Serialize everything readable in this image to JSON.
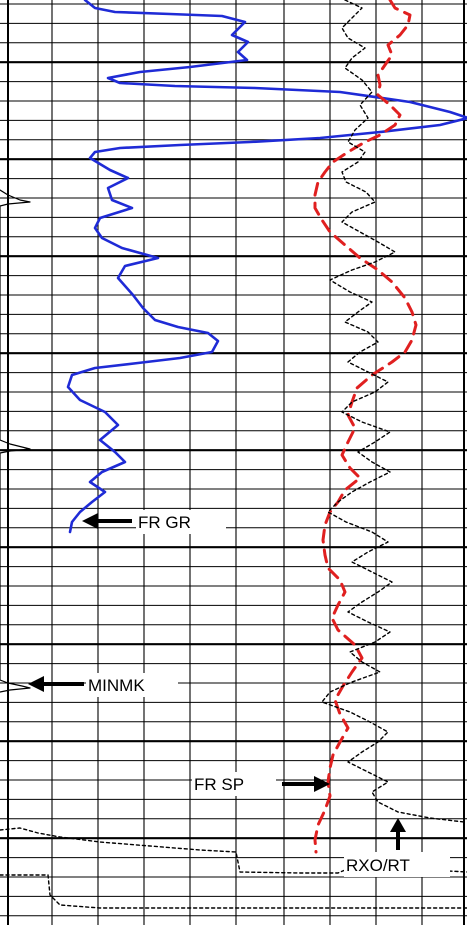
{
  "chart_data": {
    "type": "line",
    "title": "",
    "xlabel": "",
    "ylabel": "",
    "grid": true,
    "annotations": [
      {
        "name": "fr-gr-label",
        "text": "FR GR"
      },
      {
        "name": "minmk-label",
        "text": "MINMK"
      },
      {
        "name": "fr-sp-label",
        "text": "FR SP"
      },
      {
        "name": "rxo-rt-label",
        "text": "RXO/RT"
      }
    ],
    "series": [
      {
        "name": "FR GR",
        "color": "#1f2bd6",
        "style": "solid",
        "points": [
          [
            85,
            0
          ],
          [
            95,
            8
          ],
          [
            115,
            12
          ],
          [
            170,
            14
          ],
          [
            222,
            16
          ],
          [
            245,
            22
          ],
          [
            232,
            35
          ],
          [
            248,
            42
          ],
          [
            238,
            52
          ],
          [
            247,
            60
          ],
          [
            190,
            67
          ],
          [
            140,
            72
          ],
          [
            108,
            78
          ],
          [
            120,
            83
          ],
          [
            175,
            86
          ],
          [
            255,
            88
          ],
          [
            340,
            92
          ],
          [
            410,
            102
          ],
          [
            450,
            112
          ],
          [
            468,
            118
          ],
          [
            440,
            125
          ],
          [
            380,
            132
          ],
          [
            320,
            138
          ],
          [
            250,
            142
          ],
          [
            180,
            145
          ],
          [
            120,
            148
          ],
          [
            95,
            152
          ],
          [
            90,
            158
          ],
          [
            110,
            170
          ],
          [
            128,
            178
          ],
          [
            108,
            188
          ],
          [
            112,
            200
          ],
          [
            132,
            208
          ],
          [
            100,
            218
          ],
          [
            95,
            228
          ],
          [
            102,
            238
          ],
          [
            122,
            248
          ],
          [
            158,
            258
          ],
          [
            125,
            266
          ],
          [
            118,
            278
          ],
          [
            133,
            295
          ],
          [
            143,
            308
          ],
          [
            155,
            320
          ],
          [
            178,
            327
          ],
          [
            208,
            333
          ],
          [
            218,
            341
          ],
          [
            212,
            352
          ],
          [
            180,
            358
          ],
          [
            138,
            363
          ],
          [
            95,
            368
          ],
          [
            72,
            375
          ],
          [
            68,
            387
          ],
          [
            80,
            400
          ],
          [
            105,
            412
          ],
          [
            118,
            425
          ],
          [
            100,
            440
          ],
          [
            115,
            452
          ],
          [
            125,
            462
          ],
          [
            102,
            472
          ],
          [
            90,
            482
          ],
          [
            105,
            492
          ],
          [
            92,
            502
          ],
          [
            80,
            512
          ],
          [
            72,
            522
          ],
          [
            70,
            532
          ]
        ]
      },
      {
        "name": "FR SP",
        "color": "#e02020",
        "style": "dashed",
        "points": [
          [
            390,
            0
          ],
          [
            395,
            8
          ],
          [
            410,
            15
          ],
          [
            408,
            25
          ],
          [
            400,
            35
          ],
          [
            388,
            45
          ],
          [
            392,
            55
          ],
          [
            385,
            65
          ],
          [
            378,
            75
          ],
          [
            380,
            85
          ],
          [
            378,
            95
          ],
          [
            390,
            105
          ],
          [
            400,
            115
          ],
          [
            395,
            125
          ],
          [
            380,
            135
          ],
          [
            365,
            142
          ],
          [
            348,
            152
          ],
          [
            333,
            162
          ],
          [
            325,
            172
          ],
          [
            318,
            182
          ],
          [
            315,
            195
          ],
          [
            315,
            208
          ],
          [
            322,
            220
          ],
          [
            330,
            232
          ],
          [
            345,
            245
          ],
          [
            360,
            258
          ],
          [
            378,
            270
          ],
          [
            392,
            282
          ],
          [
            405,
            298
          ],
          [
            412,
            312
          ],
          [
            416,
            325
          ],
          [
            412,
            340
          ],
          [
            405,
            352
          ],
          [
            392,
            362
          ],
          [
            372,
            375
          ],
          [
            357,
            388
          ],
          [
            352,
            402
          ],
          [
            348,
            415
          ],
          [
            355,
            428
          ],
          [
            348,
            442
          ],
          [
            342,
            455
          ],
          [
            350,
            468
          ],
          [
            360,
            478
          ],
          [
            345,
            490
          ],
          [
            338,
            502
          ],
          [
            330,
            512
          ],
          [
            325,
            525
          ],
          [
            323,
            540
          ],
          [
            325,
            555
          ],
          [
            328,
            568
          ],
          [
            340,
            580
          ],
          [
            345,
            592
          ],
          [
            338,
            605
          ],
          [
            332,
            618
          ],
          [
            338,
            630
          ],
          [
            355,
            645
          ],
          [
            362,
            658
          ],
          [
            352,
            672
          ],
          [
            343,
            686
          ],
          [
            335,
            700
          ],
          [
            340,
            714
          ],
          [
            348,
            728
          ],
          [
            340,
            742
          ],
          [
            333,
            755
          ],
          [
            330,
            768
          ],
          [
            328,
            782
          ],
          [
            330,
            796
          ],
          [
            325,
            810
          ],
          [
            318,
            825
          ],
          [
            315,
            840
          ],
          [
            316,
            852
          ]
        ]
      },
      {
        "name": "RXO/RT",
        "color": "#000000",
        "style": "dotted",
        "points": [
          [
            345,
            0
          ],
          [
            362,
            8
          ],
          [
            352,
            18
          ],
          [
            342,
            28
          ],
          [
            348,
            38
          ],
          [
            365,
            48
          ],
          [
            352,
            58
          ],
          [
            345,
            68
          ],
          [
            362,
            80
          ],
          [
            372,
            92
          ],
          [
            360,
            105
          ],
          [
            368,
            118
          ],
          [
            355,
            130
          ],
          [
            348,
            142
          ],
          [
            365,
            152
          ],
          [
            358,
            162
          ],
          [
            342,
            172
          ],
          [
            346,
            182
          ],
          [
            366,
            192
          ],
          [
            375,
            202
          ],
          [
            352,
            212
          ],
          [
            342,
            222
          ],
          [
            360,
            232
          ],
          [
            378,
            242
          ],
          [
            395,
            252
          ],
          [
            375,
            262
          ],
          [
            352,
            270
          ],
          [
            330,
            280
          ],
          [
            350,
            292
          ],
          [
            372,
            302
          ],
          [
            358,
            312
          ],
          [
            345,
            322
          ],
          [
            368,
            332
          ],
          [
            378,
            342
          ],
          [
            360,
            352
          ],
          [
            348,
            362
          ],
          [
            368,
            372
          ],
          [
            388,
            382
          ],
          [
            375,
            392
          ],
          [
            352,
            402
          ],
          [
            342,
            412
          ],
          [
            362,
            422
          ],
          [
            390,
            432
          ],
          [
            375,
            442
          ],
          [
            358,
            452
          ],
          [
            372,
            462
          ],
          [
            390,
            472
          ],
          [
            370,
            482
          ],
          [
            352,
            492
          ],
          [
            338,
            502
          ],
          [
            328,
            512
          ],
          [
            346,
            522
          ],
          [
            372,
            532
          ],
          [
            388,
            542
          ],
          [
            368,
            552
          ],
          [
            352,
            562
          ],
          [
            372,
            572
          ],
          [
            392,
            582
          ],
          [
            378,
            592
          ],
          [
            362,
            602
          ],
          [
            348,
            612
          ],
          [
            368,
            622
          ],
          [
            390,
            632
          ],
          [
            375,
            642
          ],
          [
            350,
            652
          ],
          [
            362,
            662
          ],
          [
            380,
            672
          ],
          [
            352,
            682
          ],
          [
            330,
            692
          ],
          [
            322,
            702
          ],
          [
            350,
            712
          ],
          [
            370,
            722
          ],
          [
            388,
            732
          ],
          [
            378,
            742
          ],
          [
            362,
            752
          ],
          [
            348,
            762
          ],
          [
            368,
            772
          ],
          [
            388,
            782
          ],
          [
            372,
            792
          ],
          [
            378,
            802
          ],
          [
            398,
            812
          ],
          [
            430,
            818
          ],
          [
            464,
            822
          ]
        ]
      },
      {
        "name": "MINMK",
        "color": "#000000",
        "style": "solid",
        "points": [
          [
            0,
            190
          ],
          [
            8,
            195
          ],
          [
            20,
            200
          ],
          [
            30,
            202
          ],
          [
            8,
            204
          ],
          [
            0,
            206
          ],
          [
            0,
            440
          ],
          [
            10,
            444
          ],
          [
            22,
            447
          ],
          [
            30,
            449
          ],
          [
            10,
            451
          ],
          [
            0,
            453
          ],
          [
            0,
            680
          ],
          [
            8,
            683
          ],
          [
            22,
            686
          ],
          [
            30,
            688
          ],
          [
            10,
            690
          ],
          [
            0,
            692
          ]
        ]
      },
      {
        "name": "bottom-trace",
        "color": "#000000",
        "style": "dotted",
        "points": [
          [
            0,
            830
          ],
          [
            20,
            828
          ],
          [
            38,
            833
          ],
          [
            60,
            837
          ],
          [
            100,
            842
          ],
          [
            150,
            846
          ],
          [
            200,
            850
          ],
          [
            236,
            852
          ],
          [
            240,
            872
          ],
          [
            300,
            873
          ],
          [
            338,
            873
          ],
          [
            345,
            870
          ],
          [
            360,
            868
          ],
          [
            400,
            869
          ],
          [
            430,
            870
          ],
          [
            467,
            872
          ]
        ]
      },
      {
        "name": "bottom-trace-2",
        "color": "#000000",
        "style": "dotted",
        "points": [
          [
            0,
            875
          ],
          [
            48,
            875
          ],
          [
            50,
            895
          ],
          [
            60,
            905
          ],
          [
            100,
            908
          ],
          [
            200,
            908
          ],
          [
            300,
            908
          ],
          [
            400,
            908
          ],
          [
            467,
            908
          ]
        ]
      }
    ]
  }
}
